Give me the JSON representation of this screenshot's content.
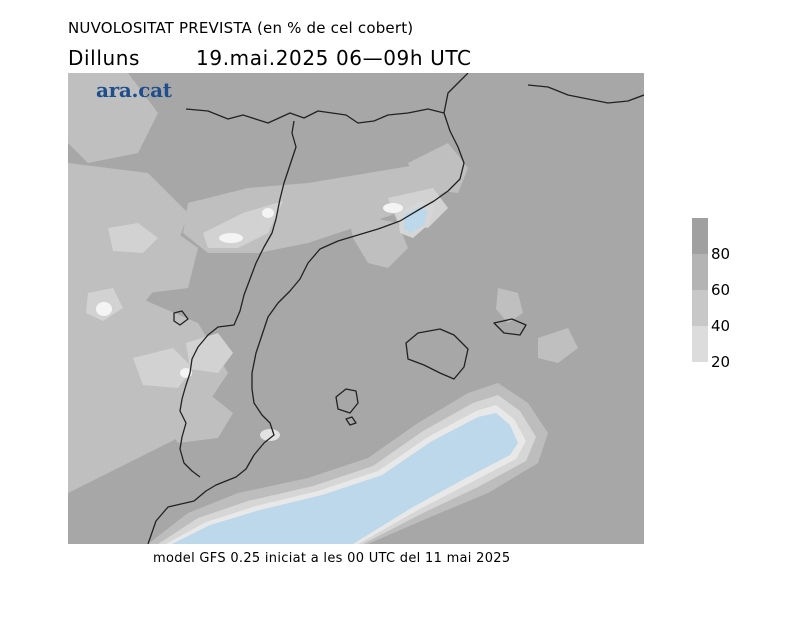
{
  "header": {
    "title": "NUVOLOSITAT PREVISTA (en % de cel cobert)",
    "day": "Dilluns",
    "datetime": "19.mai.2025 06—09h UTC"
  },
  "logo": {
    "text": "ara.cat",
    "color": "#1f4e8c"
  },
  "legend": {
    "ticks": [
      "80",
      "60",
      "40",
      "20"
    ],
    "colors": [
      "#a0a0a0",
      "#b4b4b4",
      "#c8c8c8",
      "#dcdcdc"
    ]
  },
  "map": {
    "background_color": "#a7a7a7",
    "sea_clear_color": "#bcd8ea",
    "coastline_color": "#222222"
  },
  "footer": {
    "text": "model GFS 0.25 iniciat a les 00 UTC del 11 mai 2025"
  }
}
